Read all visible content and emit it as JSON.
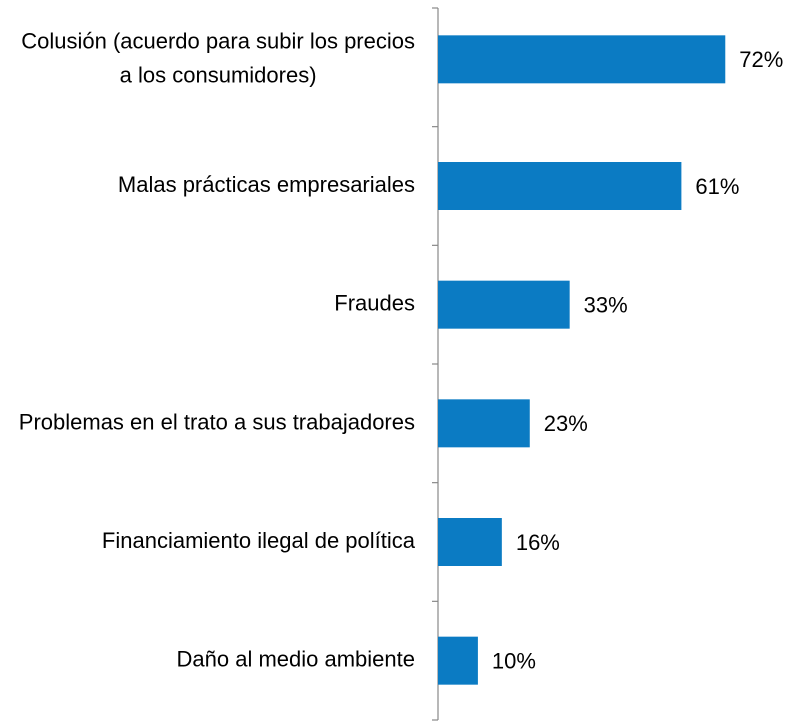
{
  "chart_data": {
    "type": "bar",
    "orientation": "horizontal",
    "categories": [
      "Colusión (acuerdo para subir los precios a los consumidores)",
      "Malas prácticas empresariales",
      "Fraudes",
      "Problemas en el trato a sus trabajadores",
      "Financiamiento ilegal de política",
      "Daño al medio ambiente"
    ],
    "values": [
      72,
      61,
      33,
      23,
      16,
      10
    ],
    "value_labels": [
      "72%",
      "61%",
      "33%",
      "23%",
      "16%",
      "10%"
    ],
    "color": "#0b7bc3"
  }
}
